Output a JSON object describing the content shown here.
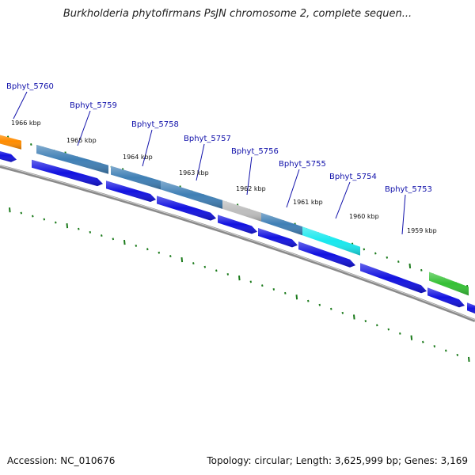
{
  "title": "Burkholderia phytofirmans PsJN chromosome 2, complete sequen...",
  "footer": {
    "accession_label": "Accession: NC_010676",
    "summary": "Topology: circular; Length: 3,625,999 bp; Genes: 3,169"
  },
  "colors": {
    "backbone": "#8a8a8a",
    "cds": "#1212e0",
    "gene_default": "#3f7fb5",
    "gene_orange": "#ff8c00",
    "gene_grey": "#bdbdbd",
    "gene_cyan": "#18e8ee",
    "gene_green": "#34c034",
    "tick": "#1a7a1a",
    "label": "#1010aa"
  },
  "chart_data": {
    "type": "genome-map",
    "tick_labels": [
      "1966 kbp",
      "1965 kbp",
      "1964 kbp",
      "1963 kbp",
      "1962 kbp",
      "1961 kbp",
      "1960 kbp",
      "1959 kbp"
    ],
    "genes": [
      {
        "label": "Bphyt_5760",
        "color": "orange"
      },
      {
        "label": "Bphyt_5759",
        "color": "default"
      },
      {
        "label": "Bphyt_5758",
        "color": "default"
      },
      {
        "label": "Bphyt_5757",
        "color": "default"
      },
      {
        "label": "Bphyt_5756",
        "color": "grey"
      },
      {
        "label": "Bphyt_5755",
        "color": "default"
      },
      {
        "label": "Bphyt_5754",
        "color": "cyan"
      },
      {
        "label": "Bphyt_5753",
        "color": "green"
      }
    ]
  }
}
